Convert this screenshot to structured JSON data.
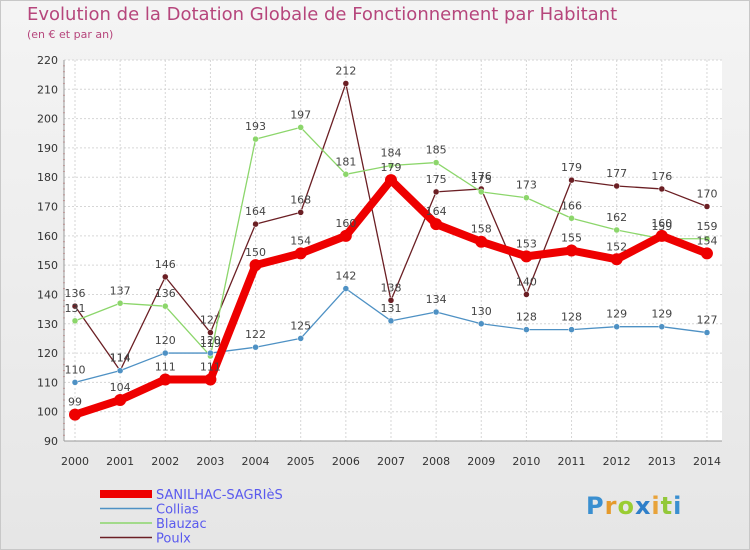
{
  "chart_data": {
    "type": "line",
    "title": "Evolution de la Dotation Globale de Fonctionnement par Habitant",
    "subtitle": "(en € et par an)",
    "xlabel": "",
    "ylabel": "",
    "ylim": [
      90,
      220
    ],
    "yticks": [
      90,
      100,
      110,
      120,
      130,
      140,
      150,
      160,
      170,
      180,
      190,
      200,
      210,
      220
    ],
    "categories": [
      "2000",
      "2001",
      "2002",
      "2003",
      "2004",
      "2005",
      "2006",
      "2007",
      "2008",
      "2009",
      "2010",
      "2011",
      "2012",
      "2013",
      "2014"
    ],
    "grid": true,
    "legend_position": "bottom-left",
    "series": [
      {
        "name": "Poulx",
        "color": "#6b1f24",
        "values": [
          136,
          114,
          146,
          127,
          164,
          168,
          212,
          138,
          175,
          176,
          140,
          179,
          177,
          176,
          170
        ]
      },
      {
        "name": "Blauzac",
        "color": "#8cd66b",
        "values": [
          131,
          137,
          136,
          119,
          193,
          197,
          181,
          184,
          185,
          175,
          173,
          166,
          162,
          159,
          159
        ]
      },
      {
        "name": "Collias",
        "color": "#4e91c4",
        "values": [
          110,
          114,
          120,
          120,
          122,
          125,
          142,
          131,
          134,
          130,
          128,
          128,
          129,
          129,
          127
        ]
      },
      {
        "name": "SANILHAC-SAGRIèS",
        "color": "#ee0000",
        "values": [
          99,
          104,
          111,
          111,
          150,
          154,
          160,
          179,
          164,
          158,
          153,
          155,
          152,
          160,
          154
        ]
      }
    ],
    "legend_order": [
      "SANILHAC-SAGRIèS",
      "Collias",
      "Blauzac",
      "Poulx"
    ],
    "legend_text_color": "#5a5aee"
  },
  "logo": {
    "letters": [
      "P",
      "r",
      "o",
      "x",
      "i",
      "t",
      "i"
    ],
    "colors": [
      "#3a8fd0",
      "#e59a2c",
      "#9acd32",
      "#2f7fc9",
      "#e8a33a",
      "#93c83a",
      "#3a8fd0"
    ]
  }
}
